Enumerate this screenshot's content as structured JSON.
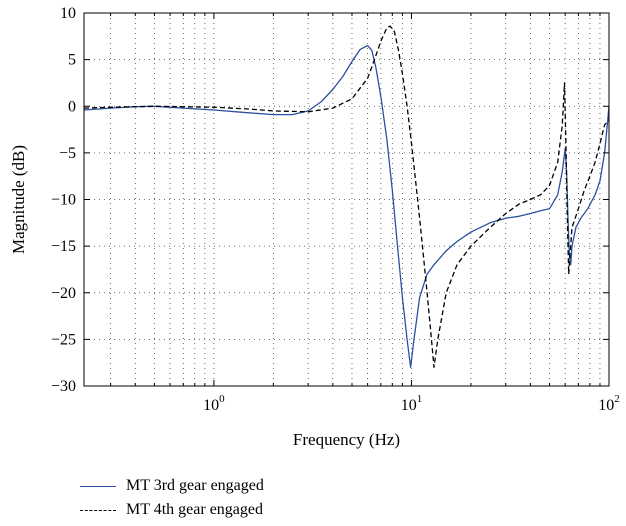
{
  "chart_data": {
    "type": "line",
    "xscale": "log",
    "xlim": [
      0.22,
      100
    ],
    "ylim": [
      -30,
      10
    ],
    "xlabel": "Frequency (Hz)",
    "ylabel": "Magnitude (dB)",
    "grid": true,
    "grid_style": "dotted",
    "legend_position": "below",
    "y_ticks": [
      10,
      5,
      0,
      -5,
      -10,
      -15,
      -20,
      -25,
      -30
    ],
    "x_ticks": [
      {
        "value": 1,
        "base": "10",
        "exp": "0"
      },
      {
        "value": 10,
        "base": "10",
        "exp": "1"
      },
      {
        "value": 100,
        "base": "10",
        "exp": "2"
      }
    ],
    "series": [
      {
        "name": "MT 3rd gear engaged",
        "color": "#2b4fa0",
        "dash": "solid",
        "points": [
          [
            0.22,
            -0.4
          ],
          [
            0.3,
            -0.2
          ],
          [
            0.4,
            -0.05
          ],
          [
            0.5,
            0.0
          ],
          [
            0.7,
            -0.2
          ],
          [
            1.0,
            -0.4
          ],
          [
            1.5,
            -0.7
          ],
          [
            2.0,
            -0.9
          ],
          [
            2.5,
            -0.9
          ],
          [
            3.0,
            -0.5
          ],
          [
            3.5,
            0.5
          ],
          [
            4.0,
            1.8
          ],
          [
            4.5,
            3.2
          ],
          [
            5.0,
            4.8
          ],
          [
            5.5,
            6.1
          ],
          [
            6.0,
            6.5
          ],
          [
            6.3,
            6.0
          ],
          [
            6.6,
            4.2
          ],
          [
            7.0,
            1.0
          ],
          [
            7.5,
            -3.5
          ],
          [
            8.0,
            -9.0
          ],
          [
            8.5,
            -15.0
          ],
          [
            9.0,
            -20.5
          ],
          [
            9.5,
            -25.0
          ],
          [
            9.9,
            -28.0
          ],
          [
            10.3,
            -25.0
          ],
          [
            11.0,
            -20.5
          ],
          [
            12.0,
            -18.0
          ],
          [
            13.0,
            -17.0
          ],
          [
            15.0,
            -15.5
          ],
          [
            17.0,
            -14.5
          ],
          [
            20.0,
            -13.5
          ],
          [
            25.0,
            -12.5
          ],
          [
            30.0,
            -12.0
          ],
          [
            35.0,
            -11.8
          ],
          [
            40.0,
            -11.5
          ],
          [
            45.0,
            -11.2
          ],
          [
            50.0,
            -11.0
          ],
          [
            55.0,
            -9.5
          ],
          [
            58.0,
            -7.0
          ],
          [
            60.0,
            -4.5
          ],
          [
            61.0,
            -7.0
          ],
          [
            62.0,
            -12.0
          ],
          [
            63.0,
            -16.0
          ],
          [
            64.0,
            -17.0
          ],
          [
            65.0,
            -15.0
          ],
          [
            68.0,
            -13.0
          ],
          [
            72.0,
            -12.0
          ],
          [
            78.0,
            -11.0
          ],
          [
            85.0,
            -9.5
          ],
          [
            90.0,
            -8.0
          ],
          [
            95.0,
            -5.0
          ],
          [
            98.0,
            -2.0
          ],
          [
            100.0,
            0.0
          ]
        ]
      },
      {
        "name": "MT 4th gear engaged",
        "color": "#000000",
        "dash": "dashed",
        "points": [
          [
            0.22,
            -0.2
          ],
          [
            0.3,
            -0.1
          ],
          [
            0.5,
            0.0
          ],
          [
            1.0,
            -0.1
          ],
          [
            1.5,
            -0.3
          ],
          [
            2.0,
            -0.5
          ],
          [
            3.0,
            -0.6
          ],
          [
            4.0,
            -0.2
          ],
          [
            5.0,
            0.8
          ],
          [
            6.0,
            3.0
          ],
          [
            6.5,
            5.0
          ],
          [
            7.0,
            7.0
          ],
          [
            7.5,
            8.4
          ],
          [
            7.8,
            8.6
          ],
          [
            8.2,
            8.0
          ],
          [
            8.6,
            6.0
          ],
          [
            9.0,
            3.5
          ],
          [
            9.5,
            0.0
          ],
          [
            10.0,
            -4.0
          ],
          [
            10.5,
            -8.0
          ],
          [
            11.0,
            -12.0
          ],
          [
            11.5,
            -16.0
          ],
          [
            12.0,
            -20.0
          ],
          [
            12.5,
            -24.0
          ],
          [
            13.0,
            -28.0
          ],
          [
            13.6,
            -25.0
          ],
          [
            15.0,
            -20.0
          ],
          [
            17.0,
            -17.0
          ],
          [
            20.0,
            -15.0
          ],
          [
            25.0,
            -13.0
          ],
          [
            30.0,
            -11.5
          ],
          [
            35.0,
            -10.5
          ],
          [
            40.0,
            -10.0
          ],
          [
            45.0,
            -9.5
          ],
          [
            50.0,
            -8.5
          ],
          [
            55.0,
            -6.0
          ],
          [
            58.0,
            -2.0
          ],
          [
            59.5,
            2.5
          ],
          [
            60.5,
            -4.0
          ],
          [
            61.5,
            -12.0
          ],
          [
            62.5,
            -18.0
          ],
          [
            63.5,
            -16.0
          ],
          [
            65.0,
            -13.0
          ],
          [
            70.0,
            -11.0
          ],
          [
            75.0,
            -9.0
          ],
          [
            80.0,
            -7.5
          ],
          [
            85.0,
            -6.0
          ],
          [
            90.0,
            -4.0
          ],
          [
            95.0,
            -2.0
          ],
          [
            100.0,
            -1.5
          ]
        ]
      }
    ]
  }
}
